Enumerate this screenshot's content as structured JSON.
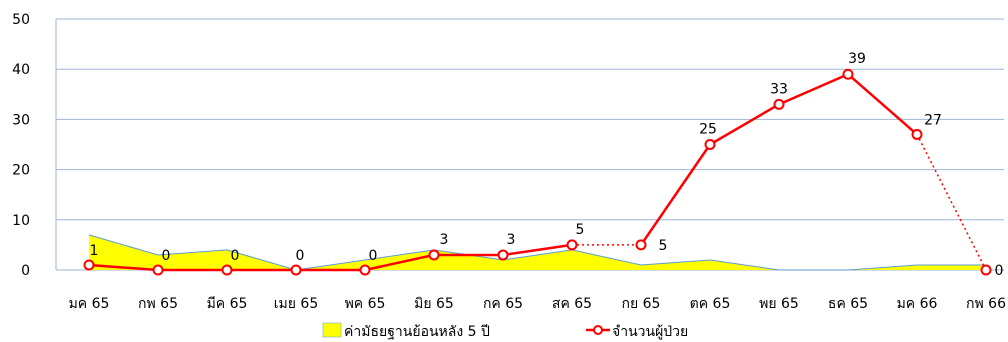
{
  "chart_data": {
    "type": "line",
    "title": "",
    "xlabel": "",
    "ylabel": "",
    "ylim": [
      0,
      50
    ],
    "yticks": [
      "0",
      "10",
      "20",
      "30",
      "40",
      "50"
    ],
    "grid": true,
    "legend_position": "bottom",
    "categories": [
      "มค 65",
      "กพ 65",
      "มีค 65",
      "เมย 65",
      "พค 65",
      "มิย 65",
      "กค 65",
      "สค 65",
      "กย 65",
      "ตค 65",
      "พย 65",
      "ธค 65",
      "มค 66",
      "กพ 66"
    ],
    "series": [
      {
        "name": "ค่ามัธยฐานย้อนหลัง 5 ปี",
        "kind": "area",
        "color": "#ffff00",
        "edge_color": "#5b9bd5",
        "values": [
          7,
          3,
          4,
          0,
          2,
          4,
          2,
          4,
          1,
          2,
          0,
          0,
          1,
          1
        ]
      },
      {
        "name": "จำนวนผู้ป่วย",
        "kind": "line",
        "color": "#ff0000",
        "values": [
          1,
          0,
          0,
          0,
          0,
          3,
          3,
          5,
          5,
          25,
          33,
          39,
          27,
          0
        ],
        "labels": [
          "1",
          "0",
          "0",
          "0",
          "0",
          "3",
          "3",
          "5",
          "5",
          "25",
          "33",
          "39",
          "27",
          "0"
        ],
        "dotted_segments": [
          [
            7,
            8
          ],
          [
            12,
            13
          ]
        ]
      }
    ]
  }
}
